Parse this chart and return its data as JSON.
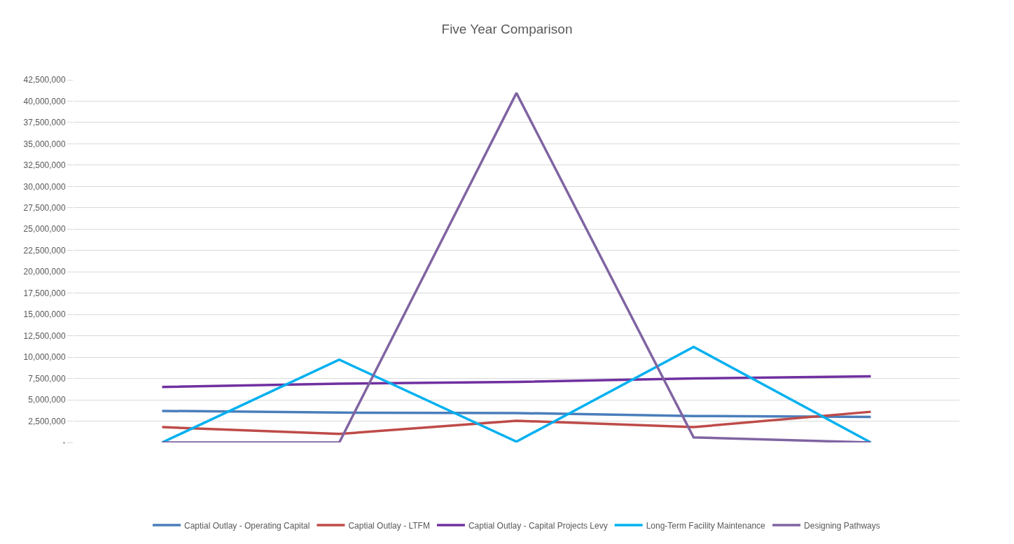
{
  "chart_data": {
    "type": "line",
    "title": "Five Year Comparison",
    "categories": [
      null,
      null,
      null,
      null,
      null
    ],
    "series": [
      {
        "name": "Captial Outlay - Operating Capital",
        "color": "#4a7ebb",
        "values": [
          3700000,
          3500000,
          3450000,
          3100000,
          3000000
        ]
      },
      {
        "name": "Captial Outlay - LTFM",
        "color": "#be4b48",
        "values": [
          1800000,
          1000000,
          2550000,
          1800000,
          3600000
        ]
      },
      {
        "name": "Captial Outlay - Capital Projects Levy",
        "color": "#7030a0",
        "values": [
          6500000,
          6900000,
          7100000,
          7500000,
          7750000
        ]
      },
      {
        "name": "Long-Term Facility Maintenance",
        "color": "#00b0f0",
        "values": [
          0,
          9700000,
          100000,
          11200000,
          0
        ]
      },
      {
        "name": "Designing Pathways",
        "color": "#8064a2",
        "values": [
          0,
          0,
          40950000,
          600000,
          0
        ]
      }
    ],
    "ylim": [
      0,
      42500000
    ],
    "yticks": [
      {
        "value": 0,
        "label": "-"
      },
      {
        "value": 2500000,
        "label": "2,500,000"
      },
      {
        "value": 5000000,
        "label": "5,000,000"
      },
      {
        "value": 7500000,
        "label": "7,500,000"
      },
      {
        "value": 10000000,
        "label": "10,000,000"
      },
      {
        "value": 12500000,
        "label": "12,500,000"
      },
      {
        "value": 15000000,
        "label": "15,000,000"
      },
      {
        "value": 17500000,
        "label": "17,500,000"
      },
      {
        "value": 20000000,
        "label": "20,000,000"
      },
      {
        "value": 22500000,
        "label": "22,500,000"
      },
      {
        "value": 25000000,
        "label": "25,000,000"
      },
      {
        "value": 27500000,
        "label": "27,500,000"
      },
      {
        "value": 30000000,
        "label": "30,000,000"
      },
      {
        "value": 32500000,
        "label": "32,500,000"
      },
      {
        "value": 35000000,
        "label": "35,000,000"
      },
      {
        "value": 37500000,
        "label": "37,500,000"
      },
      {
        "value": 40000000,
        "label": "40,000,000"
      },
      {
        "value": 42500000,
        "label": "42,500,000"
      }
    ],
    "grid": "y",
    "legend": "bottom",
    "tick_labels": "y",
    "marker": "none",
    "line_style": "solid"
  }
}
